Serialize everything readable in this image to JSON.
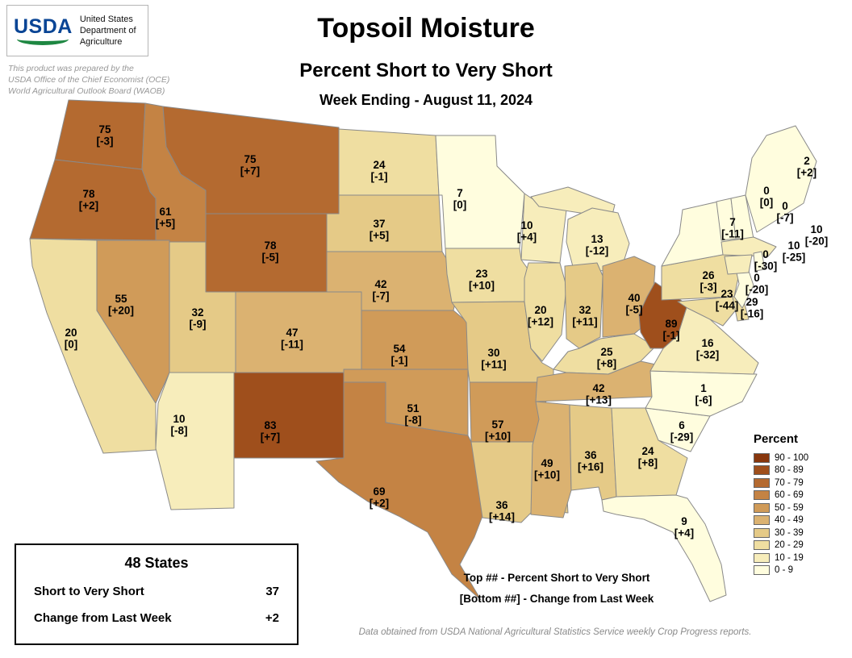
{
  "header": {
    "logo_text": "USDA",
    "dept_lines": [
      "United States",
      "Department of",
      "Agriculture"
    ],
    "prepared_lines": [
      "This product was prepared by the",
      "USDA Office of the Chief Economist (OCE)",
      "World Agricultural Outlook Board (WAOB)"
    ]
  },
  "title": "Topsoil Moisture",
  "subtitle": "Percent Short to Very Short",
  "week_ending": "Week Ending - August 11, 2024",
  "legend": {
    "title": "Percent",
    "bins": [
      {
        "range": "90 - 100",
        "min": 90,
        "color": "#88370D"
      },
      {
        "range": "80 - 89",
        "min": 80,
        "color": "#9F4F1C"
      },
      {
        "range": "70 - 79",
        "min": 70,
        "color": "#B46A30"
      },
      {
        "range": "60 - 69",
        "min": 60,
        "color": "#C48344"
      },
      {
        "range": "50 - 59",
        "min": 50,
        "color": "#D09B59"
      },
      {
        "range": "40 - 49",
        "min": 40,
        "color": "#DBB271"
      },
      {
        "range": "30 - 39",
        "min": 30,
        "color": "#E5CA87"
      },
      {
        "range": "20 - 29",
        "min": 20,
        "color": "#EFDEA1"
      },
      {
        "range": "10 - 19",
        "min": 10,
        "color": "#F7EDBB"
      },
      {
        "range": "0 - 9",
        "min": 0,
        "color": "#FFFDDE"
      }
    ]
  },
  "summary": {
    "heading": "48 States",
    "rows": [
      {
        "label": "Short to Very Short",
        "value": "37"
      },
      {
        "label": "Change from Last Week",
        "value": "+2"
      }
    ]
  },
  "notes": {
    "top": "Top ## - Percent Short to Very Short",
    "bottom": "[Bottom ##] - Change from Last Week"
  },
  "footer": "Data obtained from USDA National Agricultural Statistics Service weekly Crop Progress reports.",
  "chart_data": {
    "type": "choropleth",
    "title": "Topsoil Moisture - Percent Short to Very Short",
    "week_ending": "August 11, 2024",
    "value_label": "Percent Short to Very Short",
    "change_label": "Change from Last Week",
    "national": {
      "states": 48,
      "short_to_very_short": 37,
      "change_from_last_week": 2
    },
    "states": [
      {
        "id": "WA",
        "value": 75,
        "change": -3
      },
      {
        "id": "OR",
        "value": 78,
        "change": 2
      },
      {
        "id": "CA",
        "value": 20,
        "change": 0
      },
      {
        "id": "ID",
        "value": 61,
        "change": 5
      },
      {
        "id": "NV",
        "value": 55,
        "change": 20
      },
      {
        "id": "MT",
        "value": 75,
        "change": 7
      },
      {
        "id": "WY",
        "value": 78,
        "change": -5
      },
      {
        "id": "UT",
        "value": 32,
        "change": -9
      },
      {
        "id": "CO",
        "value": 47,
        "change": -11
      },
      {
        "id": "AZ",
        "value": 10,
        "change": -8
      },
      {
        "id": "NM",
        "value": 83,
        "change": 7
      },
      {
        "id": "ND",
        "value": 24,
        "change": -1
      },
      {
        "id": "SD",
        "value": 37,
        "change": 5
      },
      {
        "id": "NE",
        "value": 42,
        "change": -7
      },
      {
        "id": "KS",
        "value": 54,
        "change": -1
      },
      {
        "id": "OK",
        "value": 51,
        "change": -8
      },
      {
        "id": "TX",
        "value": 69,
        "change": 2
      },
      {
        "id": "MN",
        "value": 7,
        "change": 0
      },
      {
        "id": "IA",
        "value": 23,
        "change": 10
      },
      {
        "id": "MO",
        "value": 30,
        "change": 11
      },
      {
        "id": "AR",
        "value": 57,
        "change": 10
      },
      {
        "id": "LA",
        "value": 36,
        "change": 14
      },
      {
        "id": "WI",
        "value": 10,
        "change": 4
      },
      {
        "id": "IL",
        "value": 20,
        "change": 12
      },
      {
        "id": "MI",
        "value": 13,
        "change": -12
      },
      {
        "id": "IN",
        "value": 32,
        "change": 11
      },
      {
        "id": "OH",
        "value": 40,
        "change": -5
      },
      {
        "id": "MS",
        "value": 49,
        "change": 10
      },
      {
        "id": "AL",
        "value": 36,
        "change": 16
      },
      {
        "id": "GA",
        "value": 24,
        "change": 8
      },
      {
        "id": "FL",
        "value": 9,
        "change": 4
      },
      {
        "id": "KY",
        "value": 25,
        "change": 8
      },
      {
        "id": "TN",
        "value": 42,
        "change": 13
      },
      {
        "id": "SC",
        "value": 6,
        "change": -29
      },
      {
        "id": "NC",
        "value": 1,
        "change": -6
      },
      {
        "id": "VA",
        "value": 16,
        "change": -32
      },
      {
        "id": "WV",
        "value": 89,
        "change": -1
      },
      {
        "id": "PA",
        "value": 26,
        "change": -3
      },
      {
        "id": "NY",
        "value": 7,
        "change": -11
      },
      {
        "id": "MD",
        "value": 23,
        "change": -44
      },
      {
        "id": "DE",
        "value": 29,
        "change": -16
      },
      {
        "id": "NJ",
        "value": 0,
        "change": -20
      },
      {
        "id": "VT",
        "value": 0,
        "change": 0
      },
      {
        "id": "NH",
        "value": 0,
        "change": -7
      },
      {
        "id": "MA",
        "value": 10,
        "change": -20
      },
      {
        "id": "CT",
        "value": 10,
        "change": -25
      },
      {
        "id": "RI",
        "value": 0,
        "change": -30
      },
      {
        "id": "ME",
        "value": 2,
        "change": 2
      }
    ]
  }
}
